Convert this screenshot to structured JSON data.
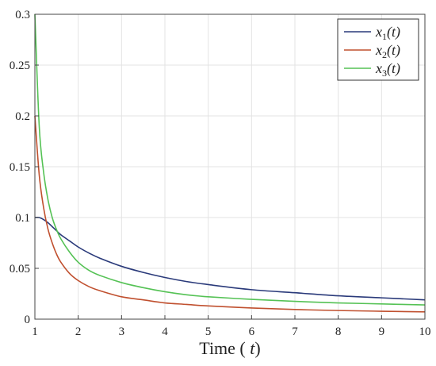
{
  "chart_data": {
    "type": "line",
    "title": "",
    "xlabel": "Time (t)",
    "ylabel": "",
    "xlim": [
      1,
      10
    ],
    "ylim": [
      0,
      0.3
    ],
    "x_ticks": [
      1,
      2,
      3,
      4,
      5,
      6,
      7,
      8,
      9,
      10
    ],
    "y_ticks": [
      0,
      0.05,
      0.1,
      0.15,
      0.2,
      0.25,
      0.3
    ],
    "y_tick_labels": [
      "0",
      "0.05",
      "0.1",
      "0.15",
      "0.2",
      "0.25",
      "0.3"
    ],
    "grid": true,
    "legend_position": "top-right",
    "x": [
      1,
      1.1,
      1.2,
      1.3,
      1.4,
      1.5,
      1.6,
      1.8,
      2,
      2.25,
      2.5,
      3,
      3.5,
      4,
      4.5,
      5,
      6,
      7,
      8,
      9,
      10
    ],
    "series": [
      {
        "name": "x1(t)",
        "color": "#2a3a7a",
        "values": [
          0.1,
          0.1,
          0.098,
          0.095,
          0.091,
          0.087,
          0.083,
          0.077,
          0.071,
          0.065,
          0.06,
          0.052,
          0.046,
          0.041,
          0.037,
          0.034,
          0.029,
          0.026,
          0.023,
          0.021,
          0.019
        ]
      },
      {
        "name": "x2(t)",
        "color": "#c0502f",
        "values": [
          0.2,
          0.142,
          0.11,
          0.089,
          0.075,
          0.064,
          0.056,
          0.045,
          0.038,
          0.032,
          0.028,
          0.022,
          0.019,
          0.016,
          0.0145,
          0.013,
          0.011,
          0.0095,
          0.0085,
          0.0078,
          0.0072
        ]
      },
      {
        "name": "x3(t)",
        "color": "#55c255",
        "values": [
          0.3,
          0.19,
          0.145,
          0.118,
          0.1,
          0.088,
          0.079,
          0.066,
          0.056,
          0.048,
          0.043,
          0.036,
          0.031,
          0.027,
          0.024,
          0.022,
          0.0195,
          0.0175,
          0.016,
          0.015,
          0.014
        ]
      }
    ]
  }
}
